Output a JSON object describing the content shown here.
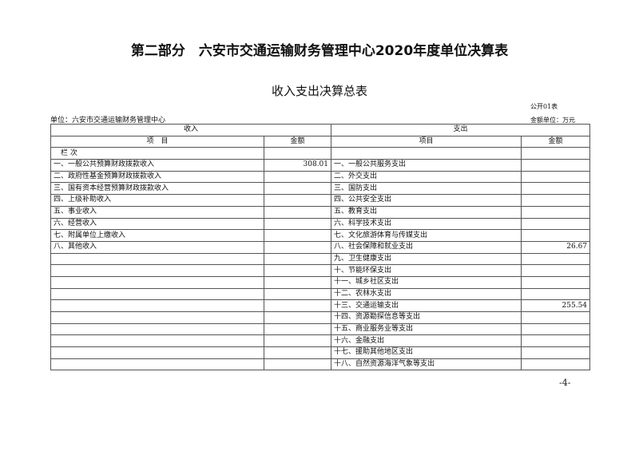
{
  "title": "第二部分　六安市交通运输财务管理中心2020年度单位决算表",
  "subtitle": "收入支出决算总表",
  "form_no": "公开01表",
  "unit": "单位：六安市交通运输财务管理中心",
  "money_unit": "金额单位：万元",
  "header": {
    "income": "收入",
    "expense": "支出",
    "item": "项　目",
    "amount": "金额",
    "item2": "项目",
    "amount2": "金额",
    "col_no": "栏 次"
  },
  "rows": [
    {
      "income": "一、一般公共预算财政拨款收入",
      "income_amt": "308.01",
      "expense": "一、一般公共服务支出",
      "expense_amt": ""
    },
    {
      "income": "二、政府性基金预算财政拨款收入",
      "income_amt": "",
      "expense": "二、外交支出",
      "expense_amt": ""
    },
    {
      "income": "三、国有资本经营预算财政拨款收入",
      "income_amt": "",
      "expense": "三、国防支出",
      "expense_amt": ""
    },
    {
      "income": "四、上级补助收入",
      "income_amt": "",
      "expense": "四、公共安全支出",
      "expense_amt": ""
    },
    {
      "income": "五、事业收入",
      "income_amt": "",
      "expense": "五、教育支出",
      "expense_amt": ""
    },
    {
      "income": "六、经营收入",
      "income_amt": "",
      "expense": "六、科学技术支出",
      "expense_amt": ""
    },
    {
      "income": "七、附属单位上缴收入",
      "income_amt": "",
      "expense": "七、文化旅游体育与传媒支出",
      "expense_amt": ""
    },
    {
      "income": "八、其他收入",
      "income_amt": "",
      "expense": "八、社会保障和就业支出",
      "expense_amt": "26.67"
    },
    {
      "income": "",
      "income_amt": "",
      "expense": "九、卫生健康支出",
      "expense_amt": ""
    },
    {
      "income": "",
      "income_amt": "",
      "expense": "十、节能环保支出",
      "expense_amt": ""
    },
    {
      "income": "",
      "income_amt": "",
      "expense": "十一、城乡社区支出",
      "expense_amt": ""
    },
    {
      "income": "",
      "income_amt": "",
      "expense": "十二、农林水支出",
      "expense_amt": ""
    },
    {
      "income": "",
      "income_amt": "",
      "expense": "十三、交通运输支出",
      "expense_amt": "255.54"
    },
    {
      "income": "",
      "income_amt": "",
      "expense": "十四、资源勘探信息等支出",
      "expense_amt": ""
    },
    {
      "income": "",
      "income_amt": "",
      "expense": "十五、商业服务业等支出",
      "expense_amt": ""
    },
    {
      "income": "",
      "income_amt": "",
      "expense": "十六、金融支出",
      "expense_amt": ""
    },
    {
      "income": "",
      "income_amt": "",
      "expense": "十七、援助其他地区支出",
      "expense_amt": ""
    },
    {
      "income": "",
      "income_amt": "",
      "expense": "十八、自然资源海洋气象等支出",
      "expense_amt": ""
    }
  ],
  "page_number": "-4-"
}
